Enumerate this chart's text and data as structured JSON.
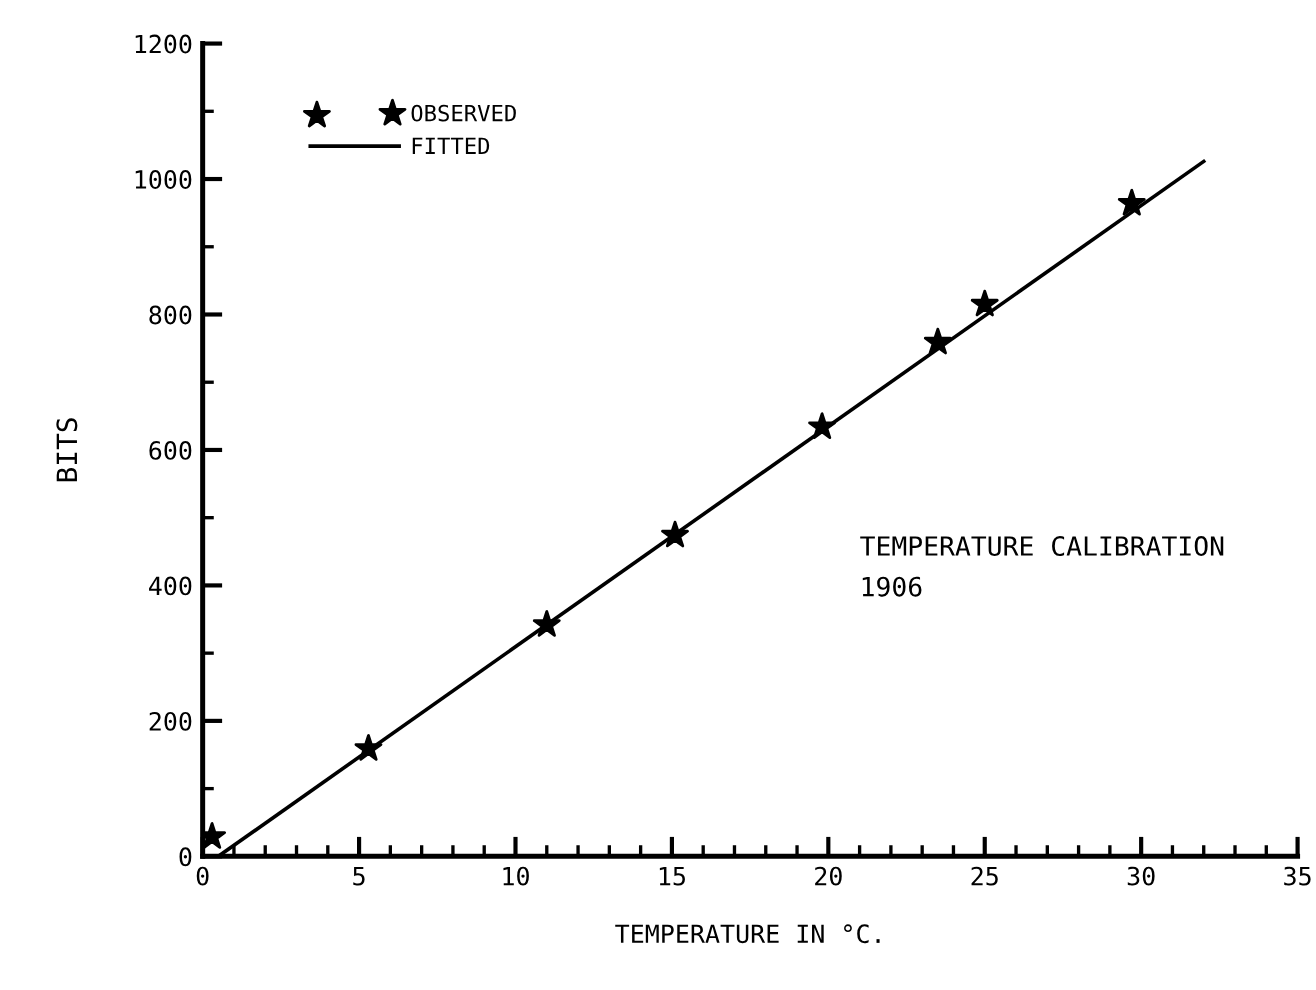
{
  "chart_data": {
    "type": "scatter",
    "xlabel": "TEMPERATURE IN °C.",
    "ylabel": "BITS",
    "series": [
      {
        "name": "OBSERVED",
        "color": "#000000",
        "marker": "star",
        "x": [
          0.3,
          5.3,
          11.0,
          15.1,
          19.8,
          23.5,
          25.0,
          29.7
        ],
        "values": [
          29,
          159,
          342,
          474,
          634,
          759,
          815,
          964
        ]
      },
      {
        "name": "FITTED",
        "type": "line",
        "color": "#000000",
        "marker": "none",
        "line_style": "solid",
        "x": [
          0.5,
          32.0
        ],
        "values": [
          0,
          1026
        ]
      }
    ],
    "xlim": [
      0,
      35
    ],
    "ylim": [
      0,
      1200
    ],
    "xticks": [
      0,
      5,
      10,
      15,
      20,
      25,
      30,
      35
    ],
    "yticks": [
      0,
      200,
      400,
      600,
      800,
      1000,
      1200
    ],
    "grid": false,
    "legend": "top left",
    "annotations": [
      "TEMPERATURE CALIBRATION",
      "1906"
    ]
  }
}
